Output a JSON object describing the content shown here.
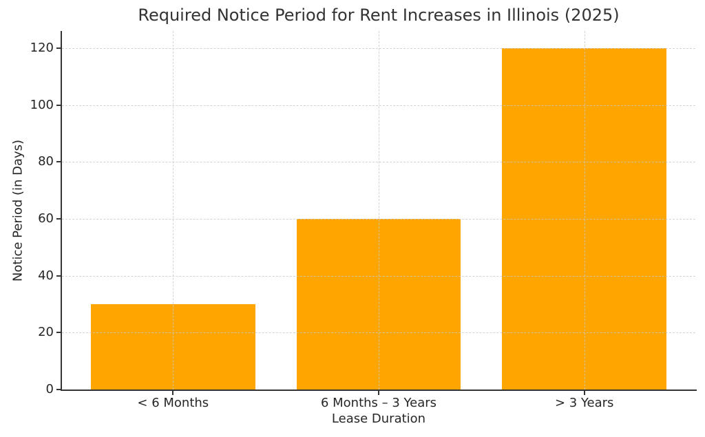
{
  "chart_data": {
    "type": "bar",
    "title": "Required Notice Period for Rent Increases in Illinois (2025)",
    "xlabel": "Lease Duration",
    "ylabel": "Notice Period (in Days)",
    "categories": [
      "< 6 Months",
      "6 Months – 3 Years",
      "> 3 Years"
    ],
    "values": [
      30,
      60,
      120
    ],
    "series": [
      {
        "name": "Notice Period (in Days)",
        "values": [
          30,
          60,
          120
        ]
      }
    ],
    "yticks": [
      0,
      20,
      40,
      60,
      80,
      100,
      120
    ],
    "ylim": [
      0,
      126
    ],
    "bar_color": "#FFA500",
    "bar_width_ratio": 0.8,
    "grid": {
      "visible": true,
      "style": "dashed",
      "color": "#c8c8c8",
      "axes": "both",
      "above_bars": true
    },
    "legend": "none",
    "text_color": "#262626",
    "spine_color": "#333333",
    "background_color": "#ffffff"
  }
}
